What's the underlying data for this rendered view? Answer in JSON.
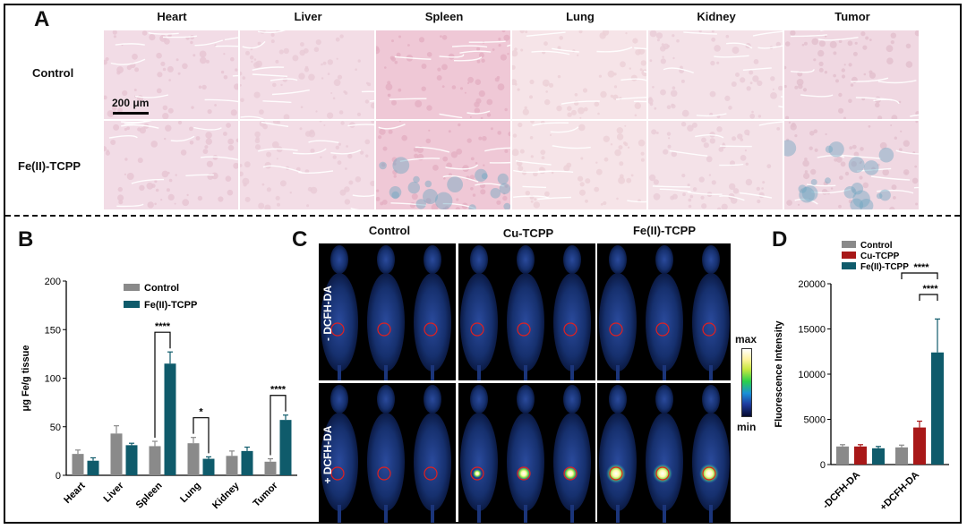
{
  "panelA": {
    "letter": "A",
    "organs": [
      "Heart",
      "Liver",
      "Spleen",
      "Lung",
      "Kidney",
      "Tumor"
    ],
    "rows": [
      "Control",
      "Fe(II)-TCPP"
    ],
    "scalebar": "200 μm"
  },
  "panelB": {
    "letter": "B",
    "chart_data": {
      "type": "bar",
      "categories": [
        "Heart",
        "Liver",
        "Spleen",
        "Lung",
        "Kidney",
        "Tumor"
      ],
      "series": [
        {
          "name": "Control",
          "values": [
            22,
            43,
            30,
            33,
            20,
            14
          ],
          "errors": [
            4,
            8,
            5,
            6,
            5,
            3
          ],
          "color": "#8a8a8a"
        },
        {
          "name": "Fe(II)-TCPP",
          "values": [
            15,
            31,
            115,
            17,
            25,
            57
          ],
          "errors": [
            3,
            2,
            12,
            2,
            4,
            5
          ],
          "color": "#0f5b6b"
        }
      ],
      "ylabel": "μg Fe/g tissue",
      "ylim": [
        0,
        200
      ],
      "yticks": [
        0,
        50,
        100,
        150,
        200
      ],
      "significance": [
        {
          "category": "Spleen",
          "label": "****"
        },
        {
          "category": "Lung",
          "label": "*"
        },
        {
          "category": "Tumor",
          "label": "****"
        }
      ]
    }
  },
  "panelC": {
    "letter": "C",
    "columns": [
      "Control",
      "Cu-TCPP",
      "Fe(II)-TCPP"
    ],
    "rows": [
      "- DCFH-DA",
      "+ DCFH-DA"
    ],
    "colorbar": {
      "max": "max",
      "min": "min"
    }
  },
  "panelD": {
    "letter": "D",
    "chart_data": {
      "type": "bar",
      "categories": [
        "-DCFH-DA",
        "+DCFH-DA"
      ],
      "series": [
        {
          "name": "Control",
          "values": [
            2000,
            1900
          ],
          "errors": [
            200,
            250
          ],
          "color": "#8a8a8a"
        },
        {
          "name": "Cu-TCPP",
          "values": [
            2000,
            4100
          ],
          "errors": [
            200,
            700
          ],
          "color": "#a81818"
        },
        {
          "name": "Fe(II)-TCPP",
          "values": [
            1800,
            12400
          ],
          "errors": [
            200,
            3700
          ],
          "color": "#0f5b6b"
        }
      ],
      "ylabel": "Fluorescence Intensity",
      "ylim": [
        0,
        20000
      ],
      "yticks": [
        0,
        5000,
        10000,
        15000,
        20000
      ],
      "significance": [
        "****",
        "****"
      ]
    }
  }
}
